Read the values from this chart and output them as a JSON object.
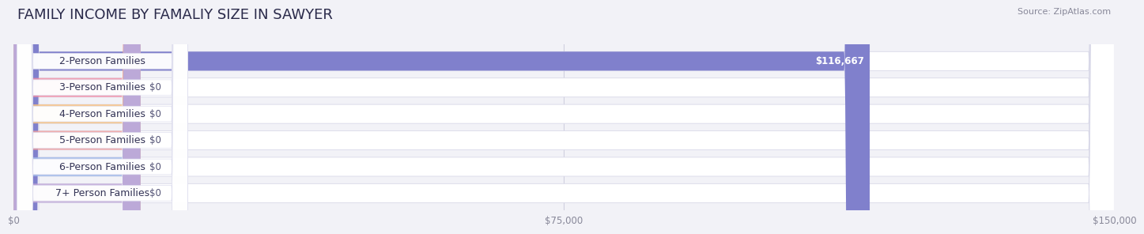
{
  "title": "FAMILY INCOME BY FAMALIY SIZE IN SAWYER",
  "source": "Source: ZipAtlas.com",
  "categories": [
    "2-Person Families",
    "3-Person Families",
    "4-Person Families",
    "5-Person Families",
    "6-Person Families",
    "7+ Person Families"
  ],
  "values": [
    116667,
    0,
    0,
    0,
    0,
    0
  ],
  "bar_colors": [
    "#8080cc",
    "#f090a8",
    "#f5c080",
    "#f0a0a0",
    "#a0b8e8",
    "#c0a8d8"
  ],
  "value_labels": [
    "$116,667",
    "$0",
    "$0",
    "$0",
    "$0",
    "$0"
  ],
  "xlim": [
    0,
    150000
  ],
  "xticks": [
    0,
    75000,
    150000
  ],
  "xticklabels": [
    "$0",
    "$75,000",
    "$150,000"
  ],
  "background_color": "#f2f2f7",
  "bar_bg_color": "#ebebf2",
  "title_fontsize": 13,
  "source_fontsize": 8,
  "bar_height": 0.72,
  "label_fontsize": 9,
  "value_fontsize": 8.5
}
